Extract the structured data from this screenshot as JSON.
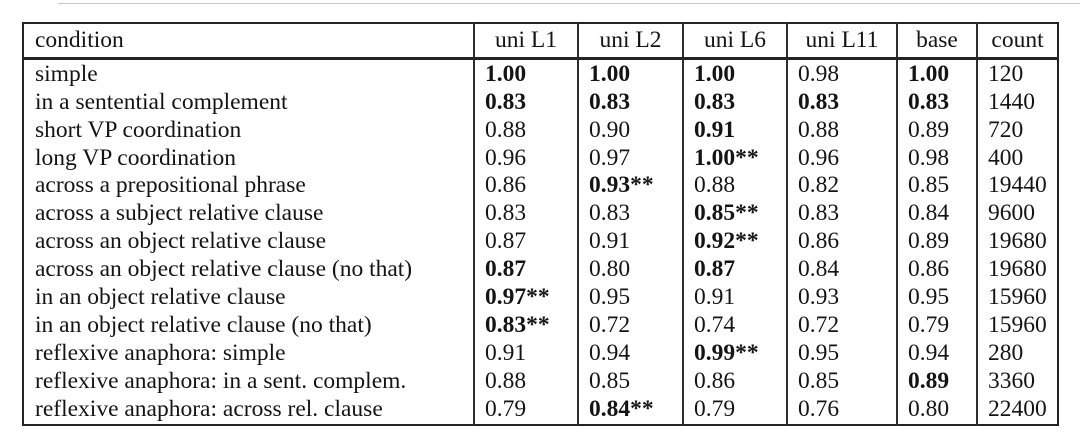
{
  "table": {
    "columns": [
      "condition",
      "uni L1",
      "uni L2",
      "uni L6",
      "uni L11",
      "base",
      "count"
    ],
    "rows": [
      {
        "condition": "simple",
        "cells": [
          {
            "text": "1.00",
            "bold": true
          },
          {
            "text": "1.00",
            "bold": true
          },
          {
            "text": "1.00",
            "bold": true
          },
          {
            "text": "0.98",
            "bold": false
          },
          {
            "text": "1.00",
            "bold": true
          },
          {
            "text": "120",
            "bold": false
          }
        ]
      },
      {
        "condition": "in a sentential complement",
        "cells": [
          {
            "text": "0.83",
            "bold": true
          },
          {
            "text": "0.83",
            "bold": true
          },
          {
            "text": "0.83",
            "bold": true
          },
          {
            "text": "0.83",
            "bold": true
          },
          {
            "text": "0.83",
            "bold": true
          },
          {
            "text": "1440",
            "bold": false
          }
        ]
      },
      {
        "condition": "short VP coordination",
        "cells": [
          {
            "text": "0.88",
            "bold": false
          },
          {
            "text": "0.90",
            "bold": false
          },
          {
            "text": "0.91",
            "bold": true
          },
          {
            "text": "0.88",
            "bold": false
          },
          {
            "text": "0.89",
            "bold": false
          },
          {
            "text": "720",
            "bold": false
          }
        ]
      },
      {
        "condition": "long VP coordination",
        "cells": [
          {
            "text": "0.96",
            "bold": false
          },
          {
            "text": "0.97",
            "bold": false
          },
          {
            "text": "1.00**",
            "bold": true
          },
          {
            "text": "0.96",
            "bold": false
          },
          {
            "text": "0.98",
            "bold": false
          },
          {
            "text": "400",
            "bold": false
          }
        ]
      },
      {
        "condition": "across a prepositional phrase",
        "cells": [
          {
            "text": "0.86",
            "bold": false
          },
          {
            "text": "0.93**",
            "bold": true
          },
          {
            "text": "0.88",
            "bold": false
          },
          {
            "text": "0.82",
            "bold": false
          },
          {
            "text": "0.85",
            "bold": false
          },
          {
            "text": "19440",
            "bold": false
          }
        ]
      },
      {
        "condition": "across a subject relative clause",
        "cells": [
          {
            "text": "0.83",
            "bold": false
          },
          {
            "text": "0.83",
            "bold": false
          },
          {
            "text": "0.85**",
            "bold": true
          },
          {
            "text": "0.83",
            "bold": false
          },
          {
            "text": "0.84",
            "bold": false
          },
          {
            "text": "9600",
            "bold": false
          }
        ]
      },
      {
        "condition": "across an object relative clause",
        "cells": [
          {
            "text": "0.87",
            "bold": false
          },
          {
            "text": "0.91",
            "bold": false
          },
          {
            "text": "0.92**",
            "bold": true
          },
          {
            "text": "0.86",
            "bold": false
          },
          {
            "text": "0.89",
            "bold": false
          },
          {
            "text": "19680",
            "bold": false
          }
        ]
      },
      {
        "condition": "across an object relative clause (no that)",
        "cells": [
          {
            "text": "0.87",
            "bold": true
          },
          {
            "text": "0.80",
            "bold": false
          },
          {
            "text": "0.87",
            "bold": true
          },
          {
            "text": "0.84",
            "bold": false
          },
          {
            "text": "0.86",
            "bold": false
          },
          {
            "text": "19680",
            "bold": false
          }
        ]
      },
      {
        "condition": "in an object relative clause",
        "cells": [
          {
            "text": "0.97**",
            "bold": true
          },
          {
            "text": "0.95",
            "bold": false
          },
          {
            "text": "0.91",
            "bold": false
          },
          {
            "text": "0.93",
            "bold": false
          },
          {
            "text": "0.95",
            "bold": false
          },
          {
            "text": "15960",
            "bold": false
          }
        ]
      },
      {
        "condition": "in an object relative clause (no that)",
        "cells": [
          {
            "text": "0.83**",
            "bold": true
          },
          {
            "text": "0.72",
            "bold": false
          },
          {
            "text": "0.74",
            "bold": false
          },
          {
            "text": "0.72",
            "bold": false
          },
          {
            "text": "0.79",
            "bold": false
          },
          {
            "text": "15960",
            "bold": false
          }
        ]
      },
      {
        "condition": "reflexive anaphora: simple",
        "cells": [
          {
            "text": "0.91",
            "bold": false
          },
          {
            "text": "0.94",
            "bold": false
          },
          {
            "text": "0.99**",
            "bold": true
          },
          {
            "text": "0.95",
            "bold": false
          },
          {
            "text": "0.94",
            "bold": false
          },
          {
            "text": "280",
            "bold": false
          }
        ]
      },
      {
        "condition": "reflexive anaphora: in a sent. complem.",
        "cells": [
          {
            "text": "0.88",
            "bold": false
          },
          {
            "text": "0.85",
            "bold": false
          },
          {
            "text": "0.86",
            "bold": false
          },
          {
            "text": "0.85",
            "bold": false
          },
          {
            "text": "0.89",
            "bold": true
          },
          {
            "text": "3360",
            "bold": false
          }
        ]
      },
      {
        "condition": "reflexive anaphora: across rel. clause",
        "cells": [
          {
            "text": "0.79",
            "bold": false
          },
          {
            "text": "0.84**",
            "bold": true
          },
          {
            "text": "0.79",
            "bold": false
          },
          {
            "text": "0.76",
            "bold": false
          },
          {
            "text": "0.80",
            "bold": false
          },
          {
            "text": "22400",
            "bold": false
          }
        ]
      }
    ]
  },
  "colors": {
    "text": "#141414",
    "border": "#242424",
    "background": "#ffffff"
  }
}
